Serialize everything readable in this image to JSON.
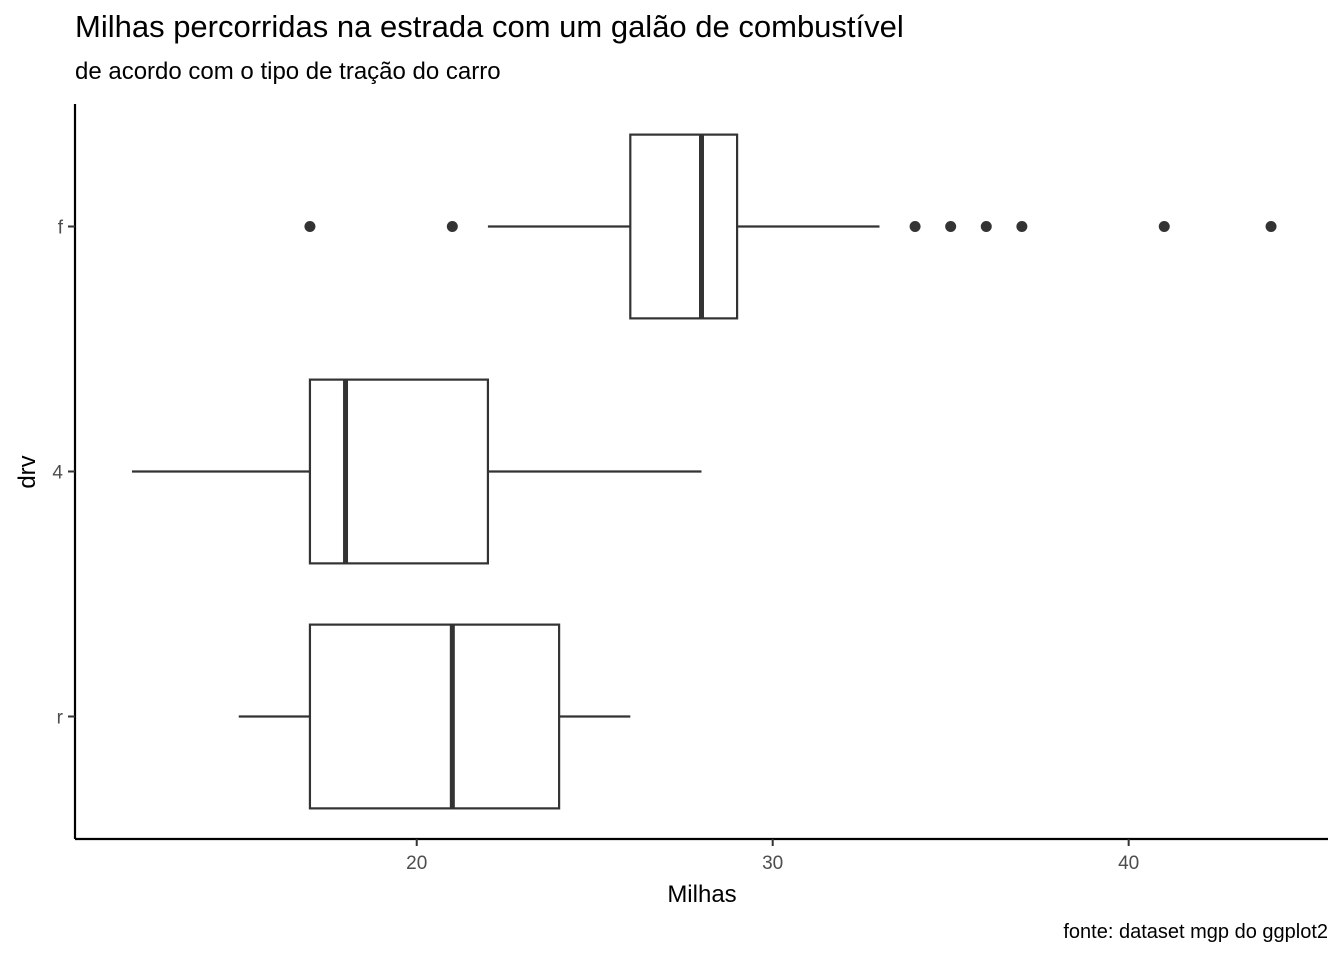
{
  "chart_data": {
    "type": "boxplot",
    "orientation": "horizontal",
    "title": "Milhas percorridas na estrada com um galão de combustível",
    "subtitle": "de acordo com o tipo de tração do carro",
    "xlabel": "Milhas",
    "ylabel": "drv",
    "caption": "fonte: dataset mgp do ggplot2",
    "xlim": [
      10.4,
      45.6
    ],
    "x_ticks": [
      20,
      30,
      40
    ],
    "categories": [
      "f",
      "4",
      "r"
    ],
    "boxes": [
      {
        "category": "f",
        "whisker_low": 22,
        "q1": 26,
        "median": 28,
        "q3": 29,
        "whisker_high": 33,
        "outliers": [
          17,
          21,
          34,
          35,
          36,
          37,
          41,
          44
        ]
      },
      {
        "category": "4",
        "whisker_low": 12,
        "q1": 17,
        "median": 18,
        "q3": 22,
        "whisker_high": 28,
        "outliers": []
      },
      {
        "category": "r",
        "whisker_low": 15,
        "q1": 17,
        "median": 21,
        "q3": 24,
        "whisker_high": 26,
        "outliers": []
      }
    ],
    "grid": false,
    "legend": "none",
    "colors": {
      "line": "#333333",
      "fill": "#ffffff",
      "axis": "#000000",
      "tick_label": "#4d4d4d"
    }
  }
}
